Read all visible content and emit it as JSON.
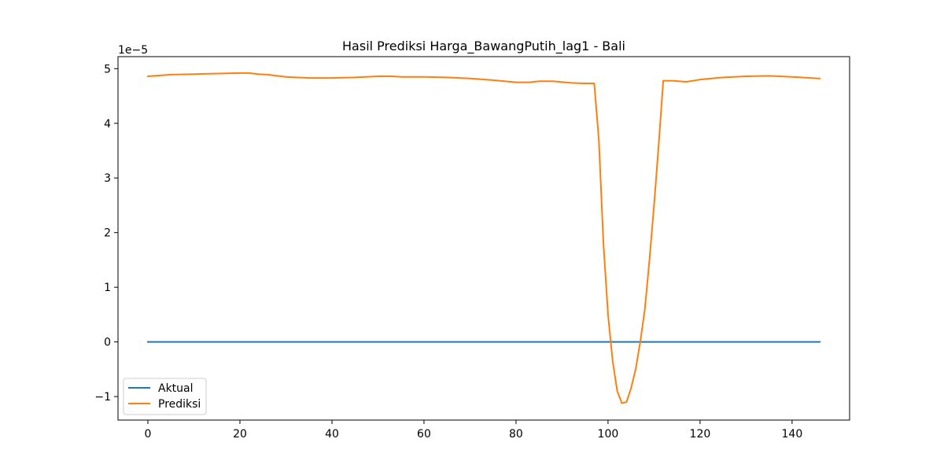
{
  "chart_data": {
    "type": "line",
    "title": "Hasil Prediksi Harga_BawangPutih_lag1 - Bali",
    "xlabel": "",
    "ylabel": "",
    "y_offset_label": "1e−5",
    "xlim": [
      -6.5,
      152.5
    ],
    "ylim": [
      -1.43,
      5.22
    ],
    "xticks": [
      0,
      20,
      40,
      60,
      80,
      100,
      120,
      140
    ],
    "xtick_labels": [
      "0",
      "20",
      "40",
      "60",
      "80",
      "100",
      "120",
      "140"
    ],
    "yticks": [
      -1,
      0,
      1,
      2,
      3,
      4,
      5
    ],
    "ytick_labels": [
      "−1",
      "0",
      "1",
      "2",
      "3",
      "4",
      "5"
    ],
    "grid": false,
    "legend_position": "lower-left",
    "series": [
      {
        "name": "Aktual",
        "color": "#1f77b4",
        "x": [
          0,
          146
        ],
        "y": [
          0,
          0
        ]
      },
      {
        "name": "Prediksi",
        "color": "#ff7f0e",
        "x": [
          0,
          5,
          10,
          15,
          20,
          22,
          24,
          26,
          30,
          35,
          40,
          45,
          50,
          53,
          55,
          60,
          65,
          70,
          75,
          80,
          83,
          85,
          88,
          92,
          95,
          97,
          98,
          99,
          100,
          101,
          102,
          103,
          104,
          105,
          106,
          107,
          108,
          109,
          110,
          111,
          112,
          114,
          117,
          120,
          125,
          130,
          135,
          140,
          146
        ],
        "y": [
          4.86,
          4.89,
          4.9,
          4.91,
          4.92,
          4.92,
          4.9,
          4.89,
          4.85,
          4.83,
          4.83,
          4.84,
          4.86,
          4.86,
          4.85,
          4.85,
          4.84,
          4.82,
          4.79,
          4.75,
          4.75,
          4.77,
          4.77,
          4.74,
          4.73,
          4.73,
          3.7,
          1.8,
          0.5,
          -0.35,
          -0.9,
          -1.12,
          -1.1,
          -0.85,
          -0.5,
          0.0,
          0.6,
          1.5,
          2.5,
          3.6,
          4.78,
          4.78,
          4.76,
          4.8,
          4.84,
          4.86,
          4.87,
          4.85,
          4.82
        ]
      }
    ]
  }
}
